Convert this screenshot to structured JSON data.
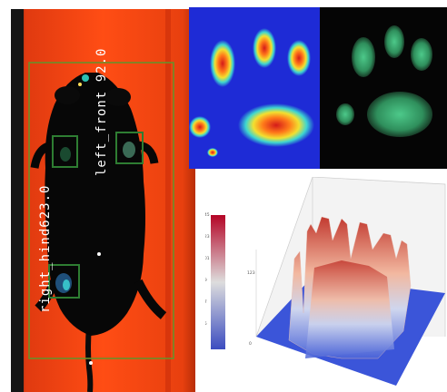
{
  "labels": {
    "left_front": "left_front 92.0",
    "right_hind": "right_hind623.0"
  },
  "colorbar": {
    "ticks": [
      "145",
      "123",
      "101",
      "79",
      "57",
      "35",
      "0"
    ]
  },
  "surface_axis_label": "123",
  "surface_axis_zero": "0",
  "colors": {
    "background_orange": "#ff4a12",
    "box_green": "#2e7d32",
    "heat_low": "#1e2bd6",
    "heat_high": "#d41a1a",
    "paw_green": "#3a9e5e"
  }
}
